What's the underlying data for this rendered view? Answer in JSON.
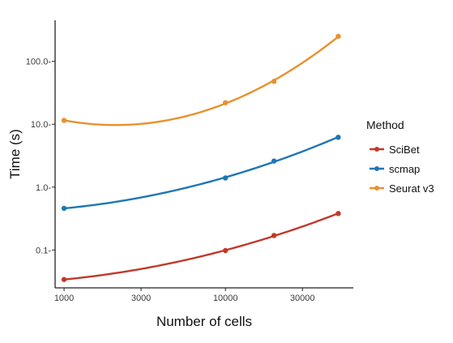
{
  "chart_data": {
    "type": "line",
    "xlabel": "Number of cells",
    "ylabel": "Time (s)",
    "x_scale": "log",
    "y_scale": "log",
    "xlim": [
      880,
      62000
    ],
    "ylim": [
      0.025,
      450
    ],
    "x_ticks": [
      1000,
      3000,
      10000,
      30000
    ],
    "x_tick_labels": [
      "1000",
      "3000",
      "10000",
      "30000"
    ],
    "y_ticks": [
      0.1,
      1.0,
      10.0,
      100.0
    ],
    "y_tick_labels": [
      "0.1-",
      "1.0-",
      "10.0-",
      "100.0-"
    ],
    "grid": false,
    "legend_title": "Method",
    "legend_position": "right",
    "series": [
      {
        "name": "SciBet",
        "color": "#c0392b",
        "x": [
          1000,
          10000,
          20000,
          50000
        ],
        "y": [
          0.034,
          0.098,
          0.17,
          0.38
        ]
      },
      {
        "name": "scmap",
        "color": "#1f77b4",
        "x": [
          1000,
          10000,
          20000,
          50000
        ],
        "y": [
          0.46,
          1.4,
          2.6,
          6.2
        ]
      },
      {
        "name": "Seurat v3",
        "color": "#e8912e",
        "x": [
          1000,
          10000,
          20000,
          50000
        ],
        "y": [
          11.5,
          22.0,
          48.0,
          250.0
        ]
      }
    ]
  }
}
